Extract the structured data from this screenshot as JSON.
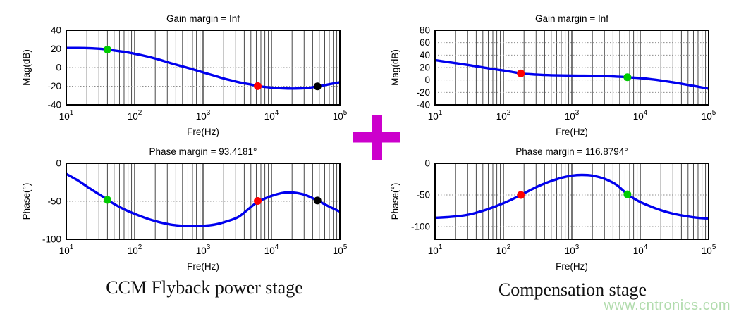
{
  "page": {
    "background_color": "#ffffff"
  },
  "figure": {
    "left_caption": "CCM Flyback power stage",
    "right_caption": "Compensation stage",
    "operator_symbol": "+",
    "operator_color": "#cc00cc",
    "watermark": {
      "text": "www.cntronics.com",
      "color": "#aedbaa"
    }
  },
  "style": {
    "line_color": "#0000ee",
    "line_width": 3.4,
    "marker_radius": 5.5,
    "box_color": "#000000",
    "grid_major_color": "#1f1f1f",
    "grid_minor_color": "#4a4a4a",
    "grid_dotted_color": "#8c8c8c",
    "text_color": "#000000"
  },
  "chart_data": [
    {
      "id": "power-stage-magnitude",
      "type": "line",
      "title": "Gain margin = Inf",
      "xlabel": "Fre(Hz)",
      "ylabel": "Mag(dB)",
      "xscale": "log",
      "grid": true,
      "xminor_grid": true,
      "legend": null,
      "xlim": [
        10,
        100000
      ],
      "ylim": [
        -40,
        40
      ],
      "xticks": [
        10,
        100,
        1000,
        10000,
        100000
      ],
      "yticks": [
        40,
        20,
        0,
        -20,
        -40
      ],
      "series": [
        {
          "name": "magnitude",
          "x": [
            10,
            15,
            22,
            33,
            40,
            50,
            70,
            100,
            150,
            220,
            330,
            500,
            700,
            1000,
            1500,
            2200,
            3300,
            5000,
            6500,
            10000,
            15000,
            22000,
            33000,
            47000,
            70000,
            100000
          ],
          "y": [
            21,
            21,
            20.7,
            19.9,
            19.2,
            18.3,
            16.8,
            14.8,
            12,
            8.8,
            4.9,
            1.2,
            -1.8,
            -5.2,
            -9,
            -12.5,
            -15.7,
            -18.2,
            -19.9,
            -21.5,
            -22.3,
            -22.5,
            -21.9,
            -20.2,
            -17.9,
            -15.8
          ]
        }
      ],
      "markers": [
        {
          "x": 40,
          "y": 19.2,
          "color": "#00cc00"
        },
        {
          "x": 6300,
          "y": -19.9,
          "color": "#ff0000"
        },
        {
          "x": 47000,
          "y": -20.2,
          "color": "#000000"
        }
      ]
    },
    {
      "id": "power-stage-phase",
      "type": "line",
      "title": "Phase margin = 93.4181°",
      "xlabel": "Fre(Hz)",
      "ylabel": "Phase(°)",
      "xscale": "log",
      "grid": true,
      "xminor_grid": true,
      "legend": null,
      "xlim": [
        10,
        100000
      ],
      "ylim": [
        -100,
        0
      ],
      "xticks": [
        10,
        100,
        1000,
        10000,
        100000
      ],
      "yticks": [
        0,
        -50,
        -100
      ],
      "series": [
        {
          "name": "phase",
          "x": [
            10,
            15,
            22,
            33,
            40,
            50,
            70,
            100,
            150,
            220,
            330,
            500,
            700,
            1000,
            1500,
            2200,
            3300,
            5000,
            6500,
            10000,
            14000,
            18000,
            25000,
            33000,
            47000,
            70000,
            100000
          ],
          "y": [
            -14,
            -23,
            -33,
            -43,
            -48,
            -53.5,
            -60.5,
            -66.5,
            -72.5,
            -77,
            -80.5,
            -82.3,
            -82.7,
            -82.3,
            -80.5,
            -76.5,
            -70.5,
            -57.5,
            -50,
            -43,
            -39.3,
            -38.2,
            -39.5,
            -42.5,
            -49,
            -57,
            -63.5
          ]
        }
      ],
      "markers": [
        {
          "x": 40,
          "y": -48,
          "color": "#00cc00"
        },
        {
          "x": 6300,
          "y": -49.5,
          "color": "#ff0000"
        },
        {
          "x": 47000,
          "y": -49,
          "color": "#000000"
        }
      ]
    },
    {
      "id": "compensation-magnitude",
      "type": "line",
      "title": "Gain margin = Inf",
      "xlabel": "Fre(Hz)",
      "ylabel": "Mag(dB)",
      "xscale": "log",
      "grid": true,
      "xminor_grid": true,
      "legend": null,
      "xlim": [
        10,
        100000
      ],
      "ylim": [
        -40,
        80
      ],
      "xticks": [
        10,
        100,
        1000,
        10000,
        100000
      ],
      "yticks": [
        80,
        60,
        40,
        20,
        0,
        -20,
        -40
      ],
      "series": [
        {
          "name": "magnitude",
          "x": [
            10,
            15,
            22,
            33,
            50,
            70,
            100,
            130,
            180,
            250,
            350,
            500,
            700,
            1000,
            1500,
            2200,
            3300,
            5000,
            6500,
            10000,
            15000,
            22000,
            33000,
            50000,
            70000,
            100000
          ],
          "y": [
            32,
            29,
            26.5,
            23.5,
            20.2,
            17.7,
            15.2,
            13.2,
            10.5,
            9.2,
            8.3,
            7.7,
            7.3,
            7.1,
            6.9,
            6.6,
            6.1,
            5.2,
            4.4,
            3,
            1,
            -1.5,
            -4.5,
            -8,
            -10.8,
            -14
          ]
        }
      ],
      "markers": [
        {
          "x": 180,
          "y": 10.5,
          "color": "#ff0000"
        },
        {
          "x": 6500,
          "y": 4.4,
          "color": "#00cc00"
        }
      ]
    },
    {
      "id": "compensation-phase",
      "type": "line",
      "title": "Phase margin = 116.8794°",
      "xlabel": "Fre(Hz)",
      "ylabel": "Phase(°)",
      "xscale": "log",
      "grid": true,
      "xminor_grid": true,
      "legend": null,
      "xlim": [
        10,
        100000
      ],
      "ylim": [
        -120,
        0
      ],
      "xticks": [
        10,
        100,
        1000,
        10000,
        100000
      ],
      "yticks": [
        0,
        -50,
        -100
      ],
      "series": [
        {
          "name": "phase",
          "x": [
            10,
            15,
            22,
            33,
            50,
            70,
            100,
            130,
            180,
            250,
            350,
            500,
            700,
            1000,
            1400,
            2000,
            3000,
            4500,
            6500,
            9000,
            13000,
            20000,
            30000,
            50000,
            70000,
            100000
          ],
          "y": [
            -86,
            -85,
            -83.5,
            -80.5,
            -75,
            -69.5,
            -63,
            -57.5,
            -50,
            -42,
            -34.5,
            -28,
            -23,
            -19.5,
            -18.3,
            -19.5,
            -24.5,
            -34,
            -49,
            -58.5,
            -66.5,
            -74,
            -79.5,
            -84,
            -86,
            -87
          ]
        }
      ],
      "markers": [
        {
          "x": 180,
          "y": -50,
          "color": "#ff0000"
        },
        {
          "x": 6500,
          "y": -49,
          "color": "#00cc00"
        }
      ]
    }
  ]
}
